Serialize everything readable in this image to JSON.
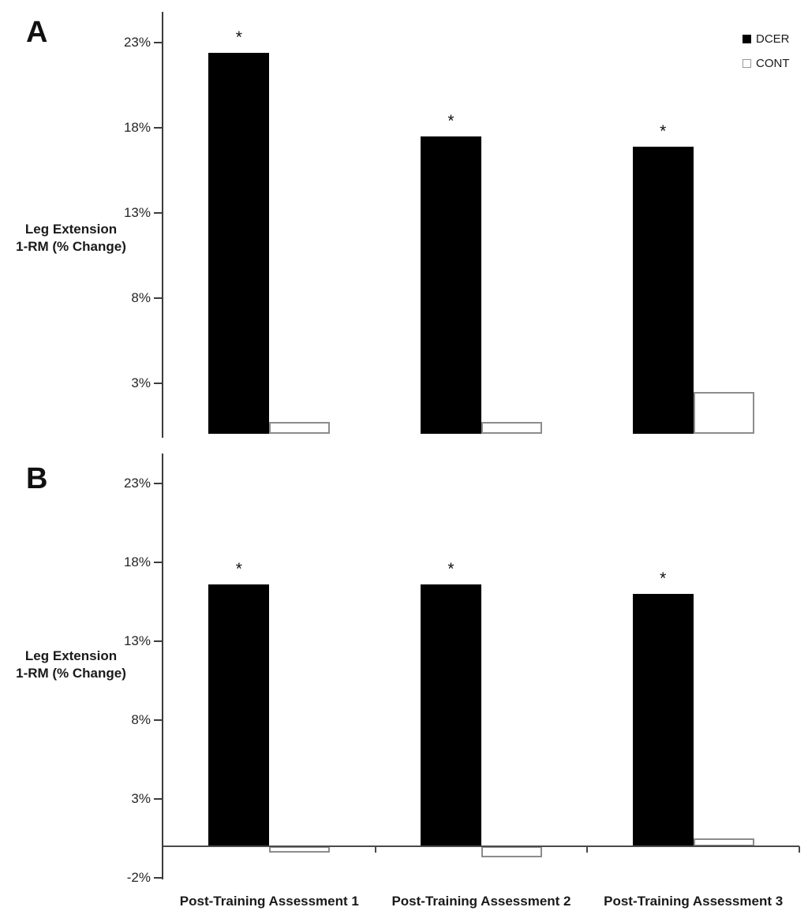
{
  "panels": [
    {
      "label": "A",
      "ylabel_line1": "Leg Extension",
      "ylabel_line2": "1-RM (% Change)"
    },
    {
      "label": "B",
      "ylabel_line1": "Leg Extension",
      "ylabel_line2": "1-RM (% Change)"
    }
  ],
  "legend": {
    "items": [
      {
        "label": "DCER",
        "fill": "#000000",
        "border": "#000000"
      },
      {
        "label": "CONT",
        "fill": "#ffffff",
        "border": "#999999"
      }
    ]
  },
  "chart_data": [
    {
      "type": "bar",
      "panel": "A",
      "title": "",
      "ylabel": "Leg Extension 1-RM (% Change)",
      "xlabel": "",
      "categories": [
        "Post-Training Assessment 1",
        "Post-Training Assessment 2",
        "Post-Training Assessment 3"
      ],
      "series": [
        {
          "name": "DCER",
          "color": "#000000",
          "values": [
            22.4,
            17.5,
            16.9
          ],
          "significance": [
            "*",
            "*",
            "*"
          ]
        },
        {
          "name": "CONT",
          "color": "#ffffff",
          "values": [
            0.7,
            0.7,
            2.5
          ],
          "significance": null
        }
      ],
      "yticks": [
        {
          "value": 23,
          "label": "23%"
        },
        {
          "value": 18,
          "label": "18%"
        },
        {
          "value": 13,
          "label": "13%"
        },
        {
          "value": 8,
          "label": "8%"
        },
        {
          "value": 3,
          "label": "3%"
        }
      ],
      "ylim": [
        0,
        24.8
      ],
      "grid": false,
      "legend_position": "top-right",
      "x_axis_line": false,
      "x_tick_labels_shown": false
    },
    {
      "type": "bar",
      "panel": "B",
      "title": "",
      "ylabel": "Leg Extension 1-RM (% Change)",
      "xlabel": "",
      "categories": [
        "Post-Training Assessment 1",
        "Post-Training Assessment 2",
        "Post-Training Assessment 3"
      ],
      "series": [
        {
          "name": "DCER",
          "color": "#000000",
          "values": [
            16.6,
            16.6,
            16.0
          ],
          "significance": [
            "*",
            "*",
            "*"
          ]
        },
        {
          "name": "CONT",
          "color": "#ffffff",
          "values": [
            -0.4,
            -0.7,
            0.5
          ],
          "significance": null
        }
      ],
      "yticks": [
        {
          "value": 23,
          "label": "23%"
        },
        {
          "value": 18,
          "label": "18%"
        },
        {
          "value": 13,
          "label": "13%"
        },
        {
          "value": 8,
          "label": "8%"
        },
        {
          "value": 3,
          "label": "3%"
        },
        {
          "value": -2,
          "label": "-2%"
        }
      ],
      "ylim": [
        -2,
        24.9
      ],
      "grid": false,
      "legend_position": "none",
      "x_axis_line": true,
      "x_tick_labels_shown": true
    }
  ]
}
